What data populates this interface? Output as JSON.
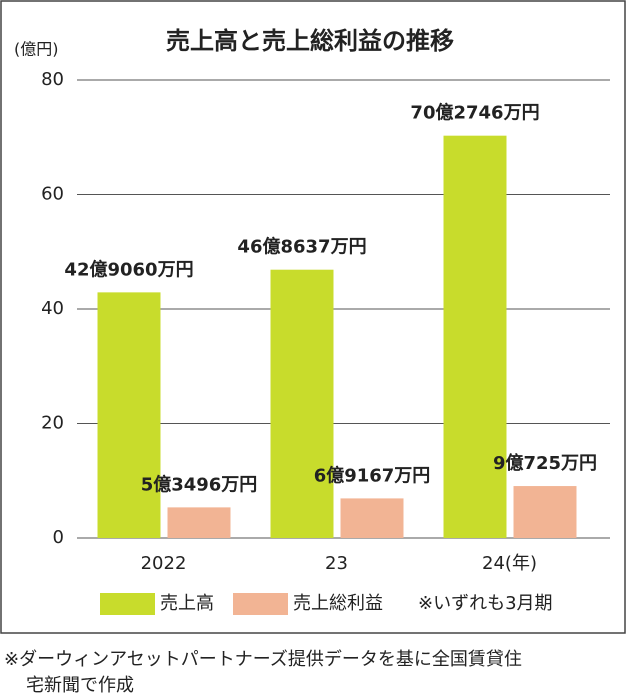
{
  "chart_data": {
    "type": "bar",
    "title": "売上高と売上総利益の推移",
    "y_unit": "(億円)",
    "categories": [
      "2022",
      "23",
      "24(年)"
    ],
    "series": [
      {
        "name": "売上高",
        "color": "#c8dc2c",
        "values": [
          42.906,
          46.8637,
          70.2746
        ],
        "value_labels": [
          "42億9060万円",
          "46億8637万円",
          "70億2746万円"
        ]
      },
      {
        "name": "売上総利益",
        "color": "#f2b494",
        "values": [
          5.3496,
          6.9167,
          9.0725
        ],
        "value_labels": [
          "5億3496万円",
          "6億9167万円",
          "9億725万円"
        ]
      }
    ],
    "ylim": [
      0,
      80
    ],
    "yticks": [
      0,
      20,
      40,
      60,
      80
    ],
    "grid": true,
    "note": "※いずれも3月期",
    "source": [
      "※ダーウィンアセットパートナーズ提供データを基に全国賃貸住",
      "宅新聞で作成"
    ]
  }
}
